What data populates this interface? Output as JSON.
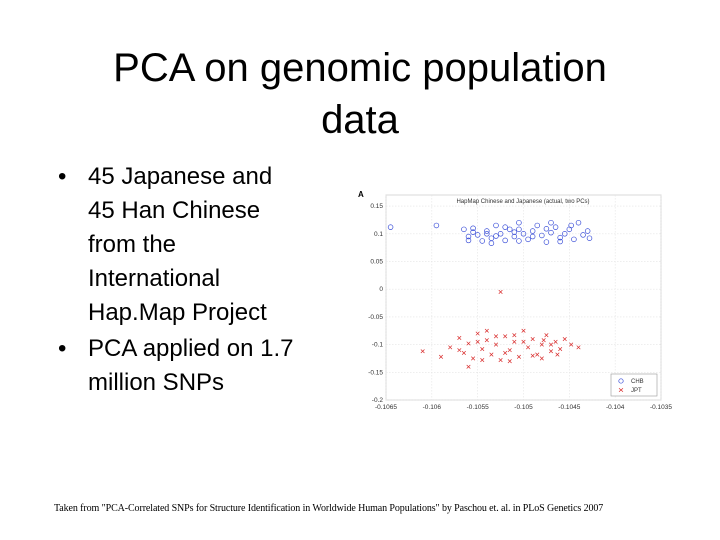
{
  "slide": {
    "title_line1": "PCA on genomic population",
    "title_line2": "data",
    "bullet_char": "•",
    "bullets": [
      {
        "text": "45 Japanese and\n45 Han Chinese\nfrom the\nInternational\nHap.Map Project"
      },
      {
        "text": "PCA applied on 1.7\nmillion SNPs"
      }
    ],
    "caption": "Taken from \"PCA-Correlated SNPs for Structure Identification in Worldwide Human Populations\" by Paschou et. al. in PLoS Genetics 2007"
  },
  "chart_data": {
    "type": "scatter",
    "title": "HapMap Chinese and Japanese (actual, two PCs)",
    "corner_label": "A",
    "xlim": [
      -0.1065,
      -0.1035
    ],
    "ylim": [
      -0.2,
      0.17
    ],
    "xticks": [
      -0.1065,
      -0.106,
      -0.1055,
      -0.105,
      -0.1045,
      -0.104,
      -0.1035
    ],
    "xtick_labels": [
      "-0.1065",
      "-0.106",
      "-0.1055",
      "-0.105",
      "-0.1045",
      "-0.104",
      "-0.1035"
    ],
    "yticks": [
      0.15,
      0.1,
      0.05,
      0,
      -0.05,
      -0.1,
      -0.15,
      -0.2
    ],
    "ytick_labels": [
      "0.15",
      "0.1",
      "0.05",
      "0",
      "-0.05",
      "-0.1",
      "-0.15",
      "-0.2"
    ],
    "grid": true,
    "legend_position": "bottom-right",
    "series": [
      {
        "name": "CHB",
        "marker": "o",
        "color": "#3b4fd8",
        "points": [
          [
            -0.10645,
            0.112
          ],
          [
            -0.10595,
            0.115
          ],
          [
            -0.10565,
            0.108
          ],
          [
            -0.1056,
            0.095
          ],
          [
            -0.10555,
            0.11
          ],
          [
            -0.1055,
            0.098
          ],
          [
            -0.10545,
            0.087
          ],
          [
            -0.1054,
            0.105
          ],
          [
            -0.10535,
            0.092
          ],
          [
            -0.1053,
            0.115
          ],
          [
            -0.10525,
            0.1
          ],
          [
            -0.1052,
            0.088
          ],
          [
            -0.10515,
            0.108
          ],
          [
            -0.1051,
            0.095
          ],
          [
            -0.10505,
            0.12
          ],
          [
            -0.105,
            0.1
          ],
          [
            -0.10495,
            0.09
          ],
          [
            -0.1049,
            0.105
          ],
          [
            -0.10485,
            0.115
          ],
          [
            -0.1048,
            0.097
          ],
          [
            -0.10475,
            0.085
          ],
          [
            -0.1047,
            0.102
          ],
          [
            -0.10465,
            0.112
          ],
          [
            -0.1046,
            0.093
          ],
          [
            -0.10455,
            0.1
          ],
          [
            -0.1045,
            0.108
          ],
          [
            -0.10445,
            0.09
          ],
          [
            -0.1044,
            0.12
          ],
          [
            -0.10435,
            0.098
          ],
          [
            -0.1043,
            0.105
          ],
          [
            -0.10428,
            0.092
          ],
          [
            -0.10535,
            0.083
          ],
          [
            -0.10505,
            0.087
          ],
          [
            -0.10555,
            0.103
          ],
          [
            -0.1047,
            0.12
          ],
          [
            -0.10505,
            0.108
          ],
          [
            -0.1054,
            0.1
          ],
          [
            -0.1049,
            0.095
          ],
          [
            -0.10448,
            0.115
          ],
          [
            -0.1052,
            0.112
          ],
          [
            -0.1051,
            0.103
          ],
          [
            -0.1056,
            0.088
          ],
          [
            -0.1046,
            0.086
          ],
          [
            -0.10475,
            0.109
          ],
          [
            -0.1053,
            0.096
          ]
        ]
      },
      {
        "name": "JPT",
        "marker": "x",
        "color": "#d82a2a",
        "points": [
          [
            -0.10525,
            -0.005
          ],
          [
            -0.1061,
            -0.112
          ],
          [
            -0.1059,
            -0.122
          ],
          [
            -0.1058,
            -0.105
          ],
          [
            -0.1057,
            -0.088
          ],
          [
            -0.10565,
            -0.115
          ],
          [
            -0.1056,
            -0.098
          ],
          [
            -0.10555,
            -0.125
          ],
          [
            -0.1055,
            -0.08
          ],
          [
            -0.10545,
            -0.108
          ],
          [
            -0.1054,
            -0.092
          ],
          [
            -0.10535,
            -0.118
          ],
          [
            -0.1053,
            -0.1
          ],
          [
            -0.10525,
            -0.128
          ],
          [
            -0.1052,
            -0.085
          ],
          [
            -0.10515,
            -0.11
          ],
          [
            -0.1051,
            -0.095
          ],
          [
            -0.10505,
            -0.122
          ],
          [
            -0.105,
            -0.075
          ],
          [
            -0.10495,
            -0.105
          ],
          [
            -0.1049,
            -0.09
          ],
          [
            -0.10485,
            -0.118
          ],
          [
            -0.1048,
            -0.1
          ],
          [
            -0.10475,
            -0.083
          ],
          [
            -0.1047,
            -0.112
          ],
          [
            -0.10465,
            -0.095
          ],
          [
            -0.1046,
            -0.108
          ],
          [
            -0.10455,
            -0.09
          ],
          [
            -0.10448,
            -0.1
          ],
          [
            -0.1044,
            -0.105
          ],
          [
            -0.1056,
            -0.14
          ],
          [
            -0.10545,
            -0.128
          ],
          [
            -0.1053,
            -0.085
          ],
          [
            -0.10515,
            -0.13
          ],
          [
            -0.105,
            -0.095
          ],
          [
            -0.1049,
            -0.12
          ],
          [
            -0.10478,
            -0.092
          ],
          [
            -0.10463,
            -0.118
          ],
          [
            -0.1057,
            -0.11
          ],
          [
            -0.1055,
            -0.095
          ],
          [
            -0.1054,
            -0.075
          ],
          [
            -0.1052,
            -0.115
          ],
          [
            -0.1051,
            -0.083
          ],
          [
            -0.1048,
            -0.125
          ],
          [
            -0.1047,
            -0.1
          ]
        ]
      }
    ]
  }
}
